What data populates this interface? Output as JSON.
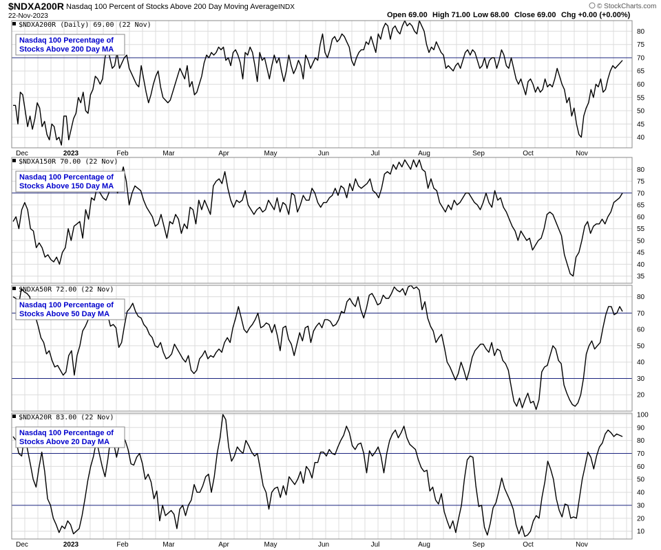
{
  "header": {
    "symbol": "$NDXA200R",
    "name": "Nasdaq 100 Percent of Stocks Above 200 Day Moving Average",
    "exchange": "INDX",
    "date": "22-Nov-2023",
    "open": "Open 69.00",
    "high": "High 71.00",
    "low": "Low 68.00",
    "close": "Close 69.00",
    "change": "Chg +0.00 (+0.00%)",
    "credit": "© StockCharts.com",
    "credit_icon": "stockcharts-logo-icon"
  },
  "chart_data": [
    {
      "type": "line",
      "label": "$NDXA200R (Daily) 69.00 (22 Nov)",
      "annotation": [
        "Nasdaq 100 Percentage of",
        "Stocks Above 200 Day MA"
      ],
      "ylim": [
        36,
        84
      ],
      "yticks": [
        40,
        45,
        50,
        55,
        60,
        65,
        70,
        75,
        80
      ],
      "reference_lines": [
        70
      ],
      "x_tick_labels": [
        "Dec",
        "2023",
        "Feb",
        "Mar",
        "Apr",
        "May",
        "Jun",
        "Jul",
        "Aug",
        "Sep",
        "Oct",
        "Nov"
      ],
      "values": [
        52,
        52,
        45,
        57,
        56,
        50,
        44,
        48,
        43,
        47,
        53,
        51,
        44,
        46,
        41,
        39,
        45,
        44,
        39,
        40,
        37,
        48,
        48,
        39,
        43,
        47,
        49,
        55,
        53,
        57,
        50,
        49,
        56,
        58,
        63,
        62,
        60,
        62,
        70,
        74,
        70,
        66,
        67,
        72,
        66,
        68,
        70,
        71,
        66,
        64,
        62,
        60,
        59,
        67,
        62,
        57,
        53,
        56,
        60,
        63,
        65,
        59,
        55,
        54,
        53,
        54,
        57,
        60,
        63,
        66,
        64,
        62,
        67,
        59,
        61,
        56,
        57,
        60,
        63,
        68,
        71,
        70,
        72,
        71,
        72,
        74,
        73,
        74,
        69,
        70,
        67,
        72,
        73,
        71,
        68,
        62,
        72,
        71,
        74,
        72,
        67,
        61,
        72,
        69,
        70,
        66,
        62,
        67,
        71,
        68,
        70,
        65,
        61,
        65,
        71,
        67,
        64,
        66,
        69,
        67,
        62,
        71,
        69,
        66,
        68,
        70,
        69,
        75,
        79,
        72,
        70,
        73,
        77,
        78,
        76,
        77,
        79,
        78,
        76,
        74,
        69,
        67,
        70,
        72,
        73,
        73,
        76,
        75,
        78,
        75,
        72,
        79,
        77,
        81,
        83,
        82,
        77,
        81,
        82,
        80,
        79,
        82,
        84,
        82,
        83,
        82,
        80,
        79,
        84,
        82,
        80,
        75,
        72,
        74,
        73,
        76,
        74,
        72,
        71,
        66,
        67,
        66,
        65,
        67,
        68,
        66,
        69,
        72,
        73,
        71,
        73,
        72,
        69,
        66,
        67,
        70,
        66,
        69,
        70,
        70,
        66,
        69,
        73,
        71,
        67,
        66,
        70,
        66,
        62,
        60,
        62,
        59,
        56,
        61,
        62,
        60,
        57,
        59,
        57,
        58,
        62,
        59,
        60,
        59,
        62,
        66,
        63,
        60,
        58,
        53,
        55,
        48,
        51,
        45,
        41,
        40,
        48,
        51,
        53,
        58,
        55,
        60,
        59,
        62,
        57,
        58,
        62,
        65,
        67,
        66,
        67,
        68,
        69
      ]
    },
    {
      "type": "line",
      "label": "$NDXA150R 70.00 (22 Nov)",
      "annotation": [
        "Nasdaq 100 Percentage of",
        "Stocks Above 150 Day MA"
      ],
      "ylim": [
        32,
        85
      ],
      "yticks": [
        35,
        40,
        45,
        50,
        55,
        60,
        65,
        70,
        75,
        80
      ],
      "reference_lines": [
        70
      ],
      "x_tick_labels": [],
      "values": [
        58,
        60,
        55,
        63,
        66,
        63,
        55,
        54,
        47,
        49,
        47,
        43,
        44,
        42,
        41,
        43,
        40,
        45,
        47,
        55,
        50,
        56,
        57,
        58,
        51,
        63,
        59,
        68,
        67,
        73,
        70,
        68,
        67,
        70,
        79,
        74,
        70,
        76,
        81,
        75,
        65,
        70,
        73,
        72,
        71,
        67,
        64,
        62,
        60,
        56,
        57,
        61,
        56,
        51,
        58,
        57,
        61,
        59,
        53,
        57,
        55,
        64,
        63,
        57,
        67,
        63,
        67,
        64,
        61,
        73,
        75,
        76,
        74,
        79,
        72,
        67,
        64,
        67,
        66,
        67,
        71,
        65,
        63,
        61,
        63,
        64,
        62,
        63,
        67,
        65,
        63,
        68,
        62,
        66,
        65,
        61,
        70,
        69,
        62,
        65,
        69,
        67,
        67,
        72,
        70,
        66,
        64,
        66,
        66,
        68,
        69,
        72,
        69,
        73,
        72,
        68,
        74,
        71,
        76,
        73,
        72,
        73,
        74,
        76,
        71,
        70,
        68,
        72,
        78,
        79,
        78,
        82,
        80,
        83,
        81,
        84,
        82,
        80,
        84,
        81,
        84,
        80,
        79,
        72,
        76,
        72,
        71,
        66,
        64,
        62,
        65,
        63,
        67,
        65,
        66,
        68,
        70,
        70,
        68,
        66,
        65,
        63,
        66,
        70,
        66,
        64,
        71,
        67,
        68,
        64,
        62,
        59,
        56,
        54,
        50,
        54,
        52,
        50,
        51,
        46,
        48,
        50,
        51,
        55,
        61,
        62,
        61,
        58,
        55,
        52,
        44,
        40,
        36,
        35,
        43,
        45,
        50,
        56,
        58,
        53,
        56,
        57,
        57,
        59,
        57,
        60,
        62,
        66,
        67,
        68,
        70
      ]
    },
    {
      "type": "line",
      "label": "$NDXA50R 72.00 (22 Nov)",
      "annotation": [
        "Nasdaq 100 Percentage of",
        "Stocks Above 50 Day MA"
      ],
      "ylim": [
        10,
        87
      ],
      "yticks": [
        20,
        30,
        40,
        50,
        60,
        70,
        80
      ],
      "reference_lines": [
        70,
        30
      ],
      "x_tick_labels": [],
      "values": [
        80,
        79,
        75,
        85,
        83,
        82,
        80,
        70,
        68,
        62,
        55,
        52,
        45,
        47,
        41,
        37,
        38,
        35,
        32,
        34,
        44,
        47,
        32,
        44,
        50,
        59,
        62,
        66,
        68,
        75,
        73,
        69,
        66,
        76,
        69,
        62,
        63,
        61,
        49,
        52,
        62,
        71,
        73,
        76,
        71,
        68,
        67,
        63,
        61,
        57,
        55,
        50,
        49,
        52,
        46,
        42,
        43,
        45,
        51,
        48,
        45,
        42,
        40,
        44,
        35,
        33,
        35,
        42,
        44,
        47,
        42,
        44,
        43,
        46,
        48,
        46,
        52,
        55,
        52,
        61,
        67,
        74,
        67,
        60,
        58,
        61,
        63,
        66,
        70,
        61,
        62,
        64,
        63,
        58,
        63,
        56,
        47,
        61,
        62,
        54,
        51,
        44,
        51,
        58,
        53,
        61,
        62,
        52,
        59,
        62,
        64,
        61,
        66,
        66,
        65,
        62,
        63,
        66,
        71,
        70,
        77,
        79,
        76,
        74,
        80,
        72,
        67,
        73,
        81,
        82,
        79,
        75,
        76,
        81,
        79,
        79,
        82,
        86,
        84,
        83,
        85,
        81,
        86,
        87,
        85,
        86,
        84,
        72,
        77,
        67,
        62,
        59,
        52,
        55,
        57,
        49,
        40,
        37,
        33,
        29,
        33,
        40,
        35,
        29,
        35,
        43,
        47,
        49,
        51,
        51,
        48,
        46,
        52,
        44,
        48,
        47,
        41,
        39,
        35,
        25,
        16,
        13,
        18,
        12,
        17,
        21,
        15,
        16,
        11,
        17,
        34,
        37,
        38,
        44,
        50,
        48,
        41,
        39,
        26,
        21,
        17,
        14,
        13,
        15,
        20,
        30,
        45,
        50,
        53,
        48,
        50,
        52,
        61,
        69,
        74,
        74,
        69,
        70,
        74,
        71
      ]
    },
    {
      "type": "line",
      "label": "$NDXA20R 83.00 (22 Nov)",
      "annotation": [
        "Nasdaq 100 Percentage of",
        "Stocks Above 20 Day MA"
      ],
      "ylim": [
        4,
        101
      ],
      "yticks": [
        10,
        20,
        30,
        40,
        50,
        60,
        70,
        80,
        90,
        100
      ],
      "reference_lines": [
        70,
        30
      ],
      "x_tick_labels": [
        "Dec",
        "2023",
        "Feb",
        "Mar",
        "Apr",
        "May",
        "Jun",
        "Jul",
        "Aug",
        "Sep",
        "Oct",
        "Nov"
      ],
      "values": [
        83,
        80,
        70,
        68,
        84,
        73,
        62,
        50,
        44,
        59,
        71,
        56,
        35,
        30,
        20,
        15,
        9,
        14,
        12,
        18,
        15,
        8,
        10,
        12,
        22,
        35,
        49,
        60,
        68,
        80,
        70,
        60,
        52,
        66,
        83,
        78,
        67,
        77,
        84,
        80,
        73,
        62,
        61,
        67,
        70,
        62,
        50,
        54,
        48,
        35,
        41,
        18,
        30,
        22,
        24,
        26,
        23,
        12,
        27,
        30,
        22,
        30,
        34,
        46,
        40,
        40,
        45,
        52,
        54,
        40,
        52,
        70,
        82,
        100,
        96,
        75,
        64,
        68,
        75,
        72,
        70,
        80,
        76,
        71,
        68,
        70,
        58,
        45,
        40,
        27,
        40,
        43,
        44,
        36,
        45,
        38,
        52,
        49,
        46,
        50,
        56,
        47,
        60,
        57,
        51,
        63,
        63,
        71,
        71,
        68,
        73,
        70,
        69,
        75,
        80,
        84,
        91,
        86,
        76,
        73,
        77,
        78,
        70,
        55,
        72,
        68,
        71,
        75,
        68,
        55,
        70,
        80,
        85,
        88,
        82,
        86,
        91,
        82,
        77,
        75,
        73,
        65,
        59,
        56,
        57,
        41,
        44,
        34,
        31,
        39,
        25,
        18,
        12,
        18,
        9,
        20,
        30,
        50,
        65,
        68,
        67,
        45,
        29,
        30,
        13,
        7,
        16,
        28,
        32,
        41,
        51,
        43,
        38,
        33,
        27,
        15,
        8,
        14,
        6,
        7,
        10,
        18,
        22,
        20,
        36,
        48,
        64,
        58,
        50,
        35,
        26,
        21,
        31,
        30,
        20,
        21,
        20,
        35,
        50,
        60,
        71,
        67,
        58,
        68,
        75,
        78,
        85,
        88,
        86,
        83,
        85,
        84,
        83
      ]
    }
  ]
}
